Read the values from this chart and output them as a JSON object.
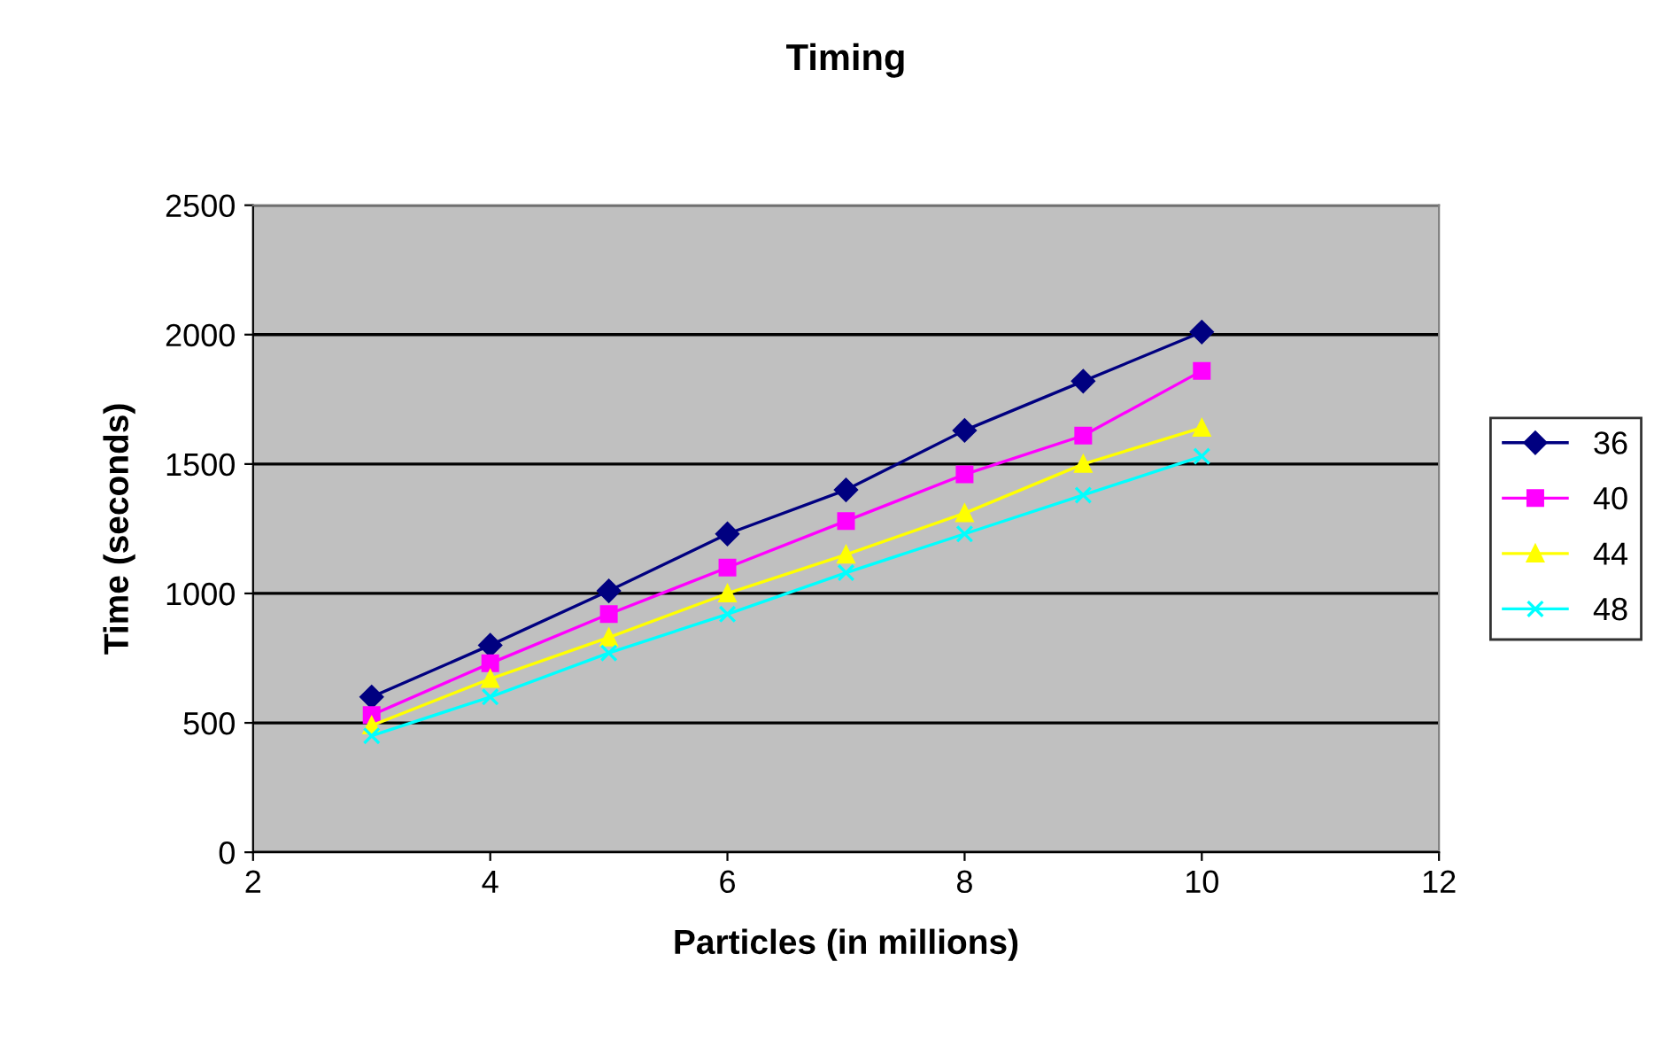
{
  "chart_data": {
    "type": "line",
    "title": "Timing",
    "xlabel": "Particles (in millions)",
    "ylabel": "Time (seconds)",
    "x": [
      3,
      4,
      5,
      6,
      7,
      8,
      9,
      10
    ],
    "series": [
      {
        "name": "36",
        "color": "#000080",
        "marker": "diamond",
        "values": [
          600,
          800,
          1010,
          1230,
          1400,
          1630,
          1820,
          2010
        ]
      },
      {
        "name": "40",
        "color": "#ff00ff",
        "marker": "square",
        "values": [
          530,
          730,
          920,
          1100,
          1280,
          1460,
          1610,
          1860
        ]
      },
      {
        "name": "44",
        "color": "#ffff00",
        "marker": "triangle",
        "values": [
          490,
          670,
          830,
          1000,
          1150,
          1310,
          1500,
          1640
        ]
      },
      {
        "name": "48",
        "color": "#00ffff",
        "marker": "cross",
        "values": [
          450,
          600,
          770,
          920,
          1080,
          1230,
          1380,
          1530
        ]
      }
    ],
    "xlim": [
      2,
      12
    ],
    "xticks": [
      2,
      4,
      6,
      8,
      10,
      12
    ],
    "ylim": [
      0,
      2500
    ],
    "yticks": [
      0,
      500,
      1000,
      1500,
      2000,
      2500
    ],
    "grid": "y",
    "legend": "right",
    "line_style": "solid"
  }
}
